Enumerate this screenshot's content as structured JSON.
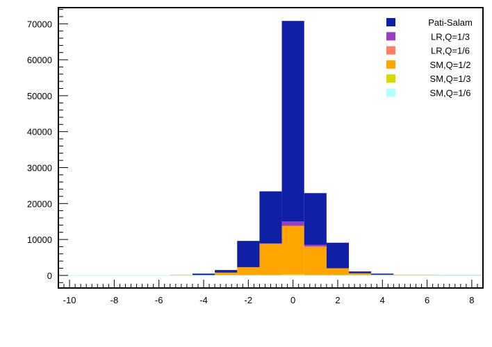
{
  "chart_data": {
    "type": "bar",
    "subtype": "stacked-histogram",
    "title": "",
    "xlabel": "",
    "ylabel": "",
    "xlim": [
      -10.5,
      8.5
    ],
    "ylim": [
      -3500,
      74500
    ],
    "grid": false,
    "legend_position": "top-right",
    "x_ticks": [
      -10,
      -8,
      -6,
      -4,
      -2,
      0,
      2,
      4,
      6,
      8
    ],
    "y_ticks": [
      0,
      10000,
      20000,
      30000,
      40000,
      50000,
      60000,
      70000
    ],
    "x_tick_labels": [
      "-10",
      "-8",
      "-6",
      "-4",
      "-2",
      "0",
      "2",
      "4",
      "6",
      "8"
    ],
    "y_tick_labels": [
      "0",
      "10000",
      "20000",
      "30000",
      "40000",
      "50000",
      "60000",
      "70000"
    ],
    "bin_edges": [
      -10.5,
      -9.5,
      -8.5,
      -7.5,
      -6.5,
      -5.5,
      -4.5,
      -3.5,
      -2.5,
      -1.5,
      -0.5,
      0.5,
      1.5,
      2.5,
      3.5,
      4.5,
      5.5,
      6.5,
      7.5,
      8.5
    ],
    "series": [
      {
        "name": "SM,Q=1/6",
        "color": "#b3ffff",
        "values": [
          0,
          0,
          0,
          0,
          0,
          0,
          0,
          0,
          0,
          0,
          0,
          0,
          0,
          0,
          0,
          0,
          0,
          0,
          0
        ]
      },
      {
        "name": "SM,Q=1/3",
        "color": "#d9d900",
        "values": [
          0,
          0,
          0,
          0,
          0,
          0,
          0,
          0,
          0,
          0,
          300,
          0,
          0,
          0,
          0,
          0,
          0,
          0,
          0
        ]
      },
      {
        "name": "SM,Q=1/2",
        "color": "#ffa500",
        "values": [
          0,
          0,
          0,
          0,
          0,
          200,
          100,
          800,
          2300,
          8800,
          13500,
          7800,
          2000,
          600,
          200,
          200,
          200,
          0,
          0
        ]
      },
      {
        "name": "LR,Q=1/6",
        "color": "#ff7f66",
        "values": [
          0,
          0,
          0,
          0,
          0,
          0,
          0,
          0,
          0,
          0,
          0,
          300,
          0,
          0,
          0,
          0,
          0,
          0,
          0
        ]
      },
      {
        "name": "LR,Q=1/3",
        "color": "#993fbf",
        "values": [
          0,
          0,
          0,
          0,
          0,
          0,
          0,
          0,
          0,
          100,
          1200,
          400,
          0,
          0,
          0,
          0,
          0,
          0,
          0
        ]
      },
      {
        "name": "Pati-Salam",
        "color": "#0f1fa6",
        "values": [
          0,
          0,
          0,
          0,
          0,
          0,
          400,
          700,
          7300,
          14500,
          55800,
          14400,
          7100,
          500,
          300,
          0,
          0,
          100,
          100
        ]
      }
    ]
  }
}
